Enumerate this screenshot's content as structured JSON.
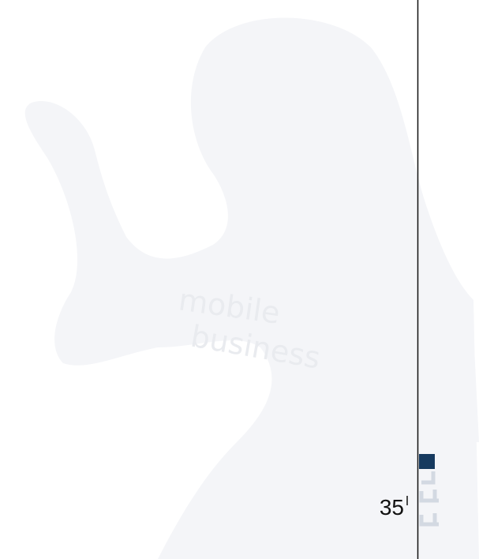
{
  "watermark": {
    "line1": "mobile",
    "line2": "business"
  },
  "page_number": "35"
}
